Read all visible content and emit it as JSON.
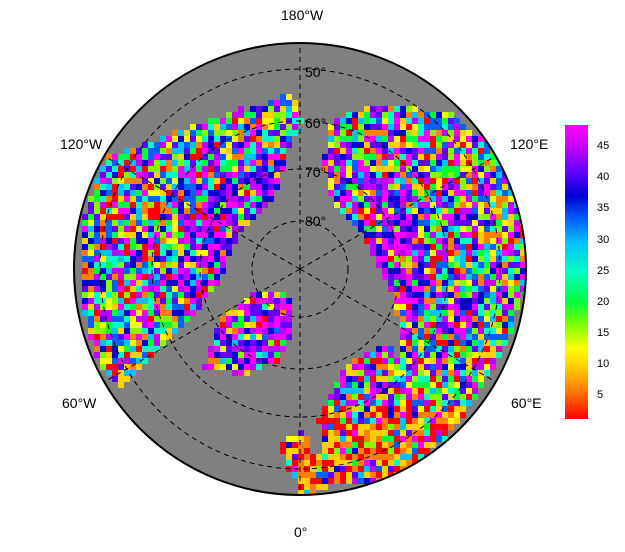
{
  "map": {
    "projection": "north-polar-stereographic",
    "ocean_color": "#808080",
    "graticule_color": "#000000",
    "longitude_labels": {
      "top": "180°W",
      "bottom": "0°",
      "upper_left": "120°W",
      "upper_right": "120°E",
      "lower_left": "60°W",
      "lower_right": "60°E"
    },
    "latitude_labels": [
      "50°",
      "60°",
      "70°",
      "80°"
    ]
  },
  "colorbar": {
    "ticks": [
      "45",
      "40",
      "35",
      "30",
      "25",
      "20",
      "15",
      "10",
      "5"
    ],
    "range": [
      0,
      48
    ],
    "colors": [
      "#ff0000",
      "#ff8000",
      "#ffd000",
      "#ffff00",
      "#80ff00",
      "#00ff40",
      "#00ffc0",
      "#00c0ff",
      "#0060ff",
      "#0000d0",
      "#6000ff",
      "#c000ff",
      "#ff00ff"
    ]
  }
}
